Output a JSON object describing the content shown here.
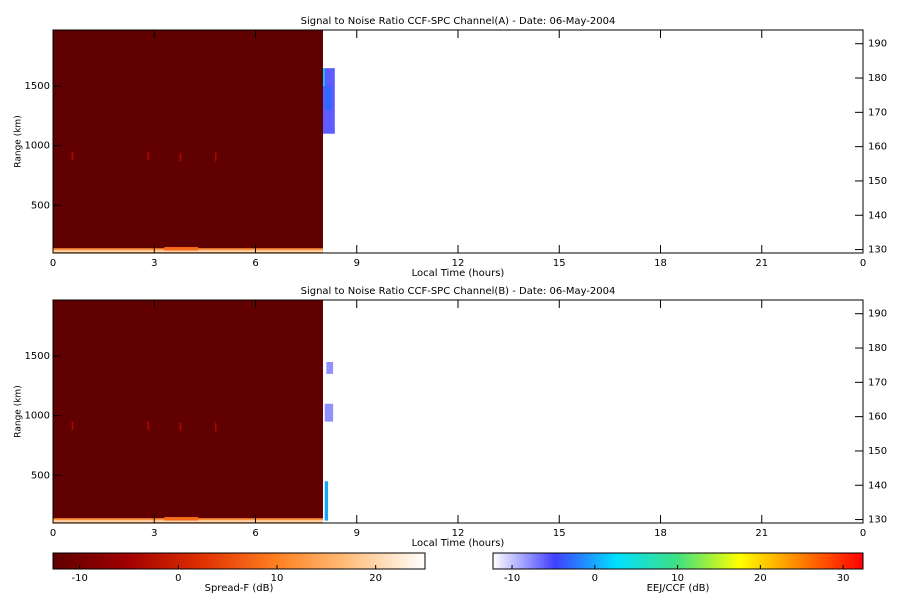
{
  "chart_data": [
    {
      "type": "heatmap",
      "title": "Signal to Noise Ratio CCF-SPC Channel(A) - Date: 06-May-2004",
      "xlabel": "Local Time (hours)",
      "ylabel": "Range (km)",
      "xlim": [
        0,
        24
      ],
      "xticks": [
        0,
        3,
        6,
        9,
        12,
        15,
        18,
        21,
        {
          "value": 24,
          "label": "0"
        }
      ],
      "ylim": [
        100,
        1970
      ],
      "yticks": [
        500,
        1000,
        1500
      ],
      "y2lim": [
        129,
        194
      ],
      "y2ticks": [
        130,
        140,
        150,
        160,
        170,
        180,
        190
      ],
      "cells": [
        {
          "x": [
            0,
            8
          ],
          "y": [
            100,
            1970
          ],
          "value": -12.7
        },
        {
          "x": [
            0,
            8
          ],
          "y": [
            100,
            140
          ],
          "value": 12
        },
        {
          "x": [
            0,
            8
          ],
          "y": [
            110,
            122
          ],
          "value": 22
        },
        {
          "x": [
            3.3,
            4.3
          ],
          "y": [
            120,
            150
          ],
          "value": 8
        },
        {
          "x": [
            0.55,
            0.6
          ],
          "y": [
            880,
            950
          ],
          "value": -4
        },
        {
          "x": [
            2.8,
            2.85
          ],
          "y": [
            880,
            950
          ],
          "value": -4
        },
        {
          "x": [
            3.75,
            3.8
          ],
          "y": [
            870,
            940
          ],
          "value": -4
        },
        {
          "x": [
            4.8,
            4.85
          ],
          "y": [
            870,
            940
          ],
          "value": -4
        }
      ],
      "eej_cells": [
        {
          "x": [
            8.0,
            8.35
          ],
          "y": [
            1100,
            1650
          ],
          "value": -6
        },
        {
          "x": [
            8.05,
            8.25
          ],
          "y": [
            1300,
            1500
          ],
          "value": -3
        },
        {
          "x": [
            8.0,
            8.05
          ],
          "y": [
            1500,
            1650
          ],
          "value": 2
        }
      ]
    },
    {
      "type": "heatmap",
      "title": "Signal to Noise Ratio CCF-SPC Channel(B) - Date: 06-May-2004",
      "xlabel": "Local Time (hours)",
      "ylabel": "Range (km)",
      "xlim": [
        0,
        24
      ],
      "xticks": [
        0,
        3,
        6,
        9,
        12,
        15,
        18,
        21,
        {
          "value": 24,
          "label": "0"
        }
      ],
      "ylim": [
        100,
        1970
      ],
      "yticks": [
        500,
        1000,
        1500
      ],
      "y2lim": [
        129,
        194
      ],
      "y2ticks": [
        130,
        140,
        150,
        160,
        170,
        180,
        190
      ],
      "cells": [
        {
          "x": [
            0,
            8
          ],
          "y": [
            100,
            1970
          ],
          "value": -12.7
        },
        {
          "x": [
            0,
            8
          ],
          "y": [
            100,
            140
          ],
          "value": 12
        },
        {
          "x": [
            0,
            8
          ],
          "y": [
            110,
            122
          ],
          "value": 22
        },
        {
          "x": [
            3.3,
            4.3
          ],
          "y": [
            120,
            150
          ],
          "value": 8
        },
        {
          "x": [
            0.55,
            0.6
          ],
          "y": [
            880,
            950
          ],
          "value": -4
        },
        {
          "x": [
            2.8,
            2.85
          ],
          "y": [
            880,
            950
          ],
          "value": -4
        },
        {
          "x": [
            3.75,
            3.8
          ],
          "y": [
            870,
            940
          ],
          "value": -4
        },
        {
          "x": [
            4.8,
            4.85
          ],
          "y": [
            870,
            940
          ],
          "value": -4
        }
      ],
      "eej_cells": [
        {
          "x": [
            8.05,
            8.3
          ],
          "y": [
            950,
            1100
          ],
          "value": -8
        },
        {
          "x": [
            8.1,
            8.3
          ],
          "y": [
            1350,
            1450
          ],
          "value": -8
        },
        {
          "x": [
            8.05,
            8.15
          ],
          "y": [
            120,
            450
          ],
          "value": 0
        }
      ]
    }
  ],
  "spread_f_colorbar": {
    "label": "Spread-F (dB)",
    "clim": [
      -12.7,
      25
    ],
    "ticks": [
      -10,
      0,
      10,
      20
    ],
    "colors": [
      "#600000",
      "#a00000",
      "#e03000",
      "#ff8020",
      "#ffc080",
      "#ffffff"
    ]
  },
  "eej_colorbar": {
    "label": "EEJ/CCF (dB)",
    "clim": [
      -12.3,
      32.4
    ],
    "ticks": [
      -10,
      0,
      10,
      20,
      30
    ],
    "colors": [
      "#ffffff",
      "#4040ff",
      "#00e0ff",
      "#40e080",
      "#ffff00",
      "#ff8000",
      "#ff0000"
    ]
  }
}
